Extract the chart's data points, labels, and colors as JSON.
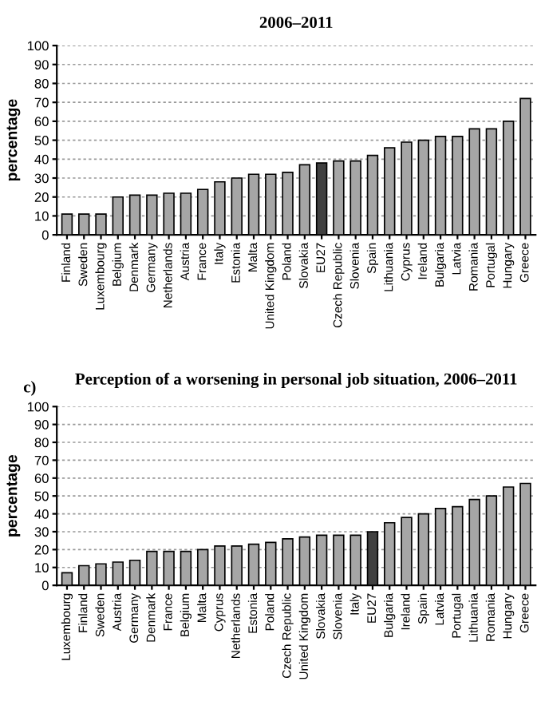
{
  "chart_data": [
    {
      "type": "bar",
      "title": "2006–2011",
      "ylabel": "percentage",
      "categories": [
        "Finland",
        "Sweden",
        "Luxembourg",
        "Belgium",
        "Denmark",
        "Germany",
        "Netherlands",
        "Austria",
        "France",
        "Italy",
        "Estonia",
        "Malta",
        "United Kingdom",
        "Poland",
        "Slovakia",
        "EU27",
        "Czech Republic",
        "Slovenia",
        "Spain",
        "Lithuania",
        "Cyprus",
        "Ireland",
        "Bulgaria",
        "Latvia",
        "Romania",
        "Portugal",
        "Hungary",
        "Greece"
      ],
      "values": [
        11,
        11,
        11,
        20,
        21,
        21,
        22,
        22,
        24,
        28,
        30,
        32,
        32,
        33,
        37,
        38,
        39,
        39,
        42,
        46,
        49,
        50,
        52,
        52,
        56,
        56,
        60,
        72
      ],
      "colors": [
        "#a6a6a6",
        "#a6a6a6",
        "#a6a6a6",
        "#a6a6a6",
        "#a6a6a6",
        "#a6a6a6",
        "#a6a6a6",
        "#a6a6a6",
        "#a6a6a6",
        "#a6a6a6",
        "#a6a6a6",
        "#a6a6a6",
        "#a6a6a6",
        "#a6a6a6",
        "#a6a6a6",
        "#404040",
        "#a6a6a6",
        "#a6a6a6",
        "#a6a6a6",
        "#a6a6a6",
        "#a6a6a6",
        "#a6a6a6",
        "#a6a6a6",
        "#a6a6a6",
        "#a6a6a6",
        "#a6a6a6",
        "#a6a6a6",
        "#a6a6a6"
      ],
      "ylim": [
        0,
        100
      ],
      "yticks": [
        0,
        10,
        20,
        30,
        40,
        50,
        60,
        70,
        80,
        90,
        100
      ],
      "grid": "y",
      "legend": false
    },
    {
      "type": "bar",
      "title": "Perception of a worsening in personal job situation, 2006–2011",
      "annotations": [
        "c)"
      ],
      "ylabel": "percentage",
      "categories": [
        "Luxembourg",
        "Finland",
        "Sweden",
        "Austria",
        "Germany",
        "Denmark",
        "France",
        "Belgium",
        "Malta",
        "Cyprus",
        "Netherlands",
        "Estonia",
        "Poland",
        "Czech Republic",
        "United Kingdom",
        "Slovakia",
        "Slovenia",
        "Italy",
        "EU27",
        "Bulgaria",
        "Ireland",
        "Spain",
        "Latvia",
        "Portugal",
        "Lithuania",
        "Romania",
        "Hungary",
        "Greece"
      ],
      "values": [
        7,
        11,
        12,
        13,
        14,
        19,
        19,
        19,
        20,
        22,
        22,
        23,
        24,
        26,
        27,
        28,
        28,
        28,
        30,
        35,
        38,
        40,
        43,
        44,
        48,
        50,
        55,
        57
      ],
      "colors": [
        "#a6a6a6",
        "#a6a6a6",
        "#a6a6a6",
        "#a6a6a6",
        "#a6a6a6",
        "#a6a6a6",
        "#a6a6a6",
        "#a6a6a6",
        "#a6a6a6",
        "#a6a6a6",
        "#a6a6a6",
        "#a6a6a6",
        "#a6a6a6",
        "#a6a6a6",
        "#a6a6a6",
        "#a6a6a6",
        "#a6a6a6",
        "#a6a6a6",
        "#404040",
        "#a6a6a6",
        "#a6a6a6",
        "#a6a6a6",
        "#a6a6a6",
        "#a6a6a6",
        "#a6a6a6",
        "#a6a6a6",
        "#a6a6a6",
        "#a6a6a6"
      ],
      "ylim": [
        0,
        100
      ],
      "yticks": [
        0,
        10,
        20,
        30,
        40,
        50,
        60,
        70,
        80,
        90,
        100
      ],
      "grid": "y",
      "legend": false
    }
  ]
}
